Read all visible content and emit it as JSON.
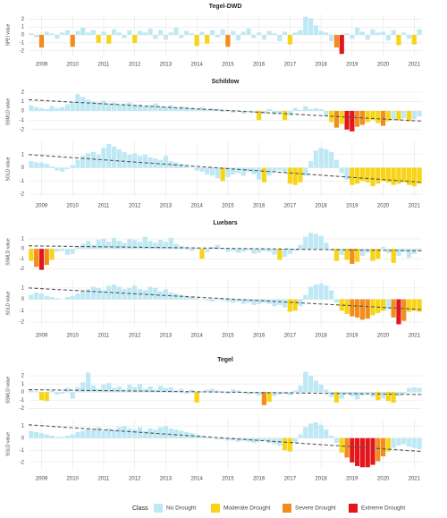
{
  "chart_data": [
    {
      "type": "bar",
      "title": "Tegel-DWD",
      "ylabel": "SPEI value",
      "grid": true,
      "categories": [
        null,
        null,
        "2009",
        null,
        null,
        null,
        null,
        null,
        "2010",
        null,
        null,
        null,
        null,
        null,
        "2011",
        null,
        null,
        null,
        null,
        null,
        "2012",
        null,
        null,
        null,
        null,
        null,
        "2013",
        null,
        null,
        null,
        null,
        null,
        "2014",
        null,
        null,
        null,
        null,
        null,
        "2015",
        null,
        null,
        null,
        null,
        null,
        "2016",
        null,
        null,
        null,
        null,
        null,
        "2017",
        null,
        null,
        null,
        null,
        null,
        "2018",
        null,
        null,
        null,
        null,
        null,
        "2019",
        null,
        null,
        null,
        null,
        null,
        "2020",
        null,
        null,
        null,
        null,
        null,
        "2021",
        null
      ],
      "values": [
        0.2,
        -0.3,
        -1.6,
        0.4,
        0.2,
        -0.5,
        0.3,
        0.6,
        -1.5,
        0.5,
        0.9,
        0.3,
        0.6,
        -1.0,
        0.4,
        -1.1,
        0.7,
        0.3,
        -0.4,
        0.6,
        -1.0,
        0.5,
        0.3,
        0.8,
        -0.5,
        0.6,
        -0.6,
        0.3,
        0.9,
        -0.4,
        0.5,
        0.2,
        -1.4,
        0.4,
        -1.1,
        0.6,
        -0.3,
        0.7,
        -1.5,
        0.5,
        -0.7,
        0.4,
        0.8,
        -0.4,
        0.3,
        -0.6,
        0.5,
        0.2,
        -0.8,
        0.4,
        -1.2,
        0.3,
        0.6,
        2.3,
        2.1,
        1.2,
        0.5,
        0.3,
        -0.8,
        -1.6,
        -2.4,
        0.2,
        -0.5,
        0.9,
        0.4,
        -0.6,
        0.7,
        0.3,
        0.4,
        -0.7,
        0.6,
        -1.3,
        0.3,
        -0.5,
        -1.2,
        0.7
      ],
      "ylim": [
        -2.6,
        2.6
      ],
      "yticks": [
        -2,
        -1,
        0,
        1,
        2
      ]
    },
    {
      "type": "bar",
      "title": "Schildow",
      "ylabel": "SSMLD value",
      "grid": true,
      "values": [
        0.6,
        0.4,
        0.3,
        0.2,
        0.5,
        0.3,
        0.4,
        0.7,
        1.0,
        1.8,
        1.5,
        1.2,
        1.0,
        0.9,
        1.1,
        0.8,
        0.9,
        0.7,
        0.8,
        0.9,
        0.6,
        0.7,
        0.5,
        0.6,
        0.8,
        0.5,
        0.4,
        0.6,
        0.3,
        0.5,
        0.4,
        0.3,
        0.2,
        0.4,
        0.1,
        0.3,
        0.2,
        -0.1,
        0.1,
        -0.2,
        0.1,
        -0.3,
        -0.1,
        -0.2,
        -1.0,
        -0.3,
        0.2,
        -0.4,
        -0.2,
        -1.0,
        -0.5,
        0.3,
        0.1,
        0.5,
        0.2,
        0.3,
        0.2,
        -0.5,
        -1.2,
        -1.8,
        -1.4,
        -2.0,
        -2.2,
        -1.7,
        -1.5,
        -1.2,
        -1.0,
        -1.3,
        -1.6,
        -1.1,
        -0.9,
        -1.0,
        -0.8,
        -1.1,
        -0.9,
        -0.6
      ],
      "ylim": [
        -2.5,
        2.3
      ],
      "yticks": [
        -2,
        -1,
        0,
        1,
        2
      ],
      "trend": [
        1.2,
        -1.1
      ]
    },
    {
      "type": "bar",
      "ylabel": "SGLD value",
      "grid": true,
      "categories": [
        null,
        null,
        "2009",
        null,
        null,
        null,
        null,
        null,
        "2010",
        null,
        null,
        null,
        null,
        null,
        "2011",
        null,
        null,
        null,
        null,
        null,
        "2012",
        null,
        null,
        null,
        null,
        null,
        "2013",
        null,
        null,
        null,
        null,
        null,
        "2014",
        null,
        null,
        null,
        null,
        null,
        "2015",
        null,
        null,
        null,
        null,
        null,
        "2016",
        null,
        null,
        null,
        null,
        null,
        "2017",
        null,
        null,
        null,
        null,
        null,
        "2018",
        null,
        null,
        null,
        null,
        null,
        "2019",
        null,
        null,
        null,
        null,
        null,
        "2020",
        null,
        null,
        null,
        null,
        null,
        "2021",
        null
      ],
      "values": [
        0.5,
        0.4,
        0.4,
        0.3,
        0.1,
        -0.2,
        -0.3,
        -0.1,
        0.2,
        0.6,
        0.9,
        1.1,
        1.2,
        1.0,
        1.5,
        1.8,
        1.6,
        1.4,
        1.2,
        1.0,
        1.1,
        0.9,
        1.0,
        0.8,
        0.7,
        0.6,
        0.9,
        0.5,
        0.4,
        0.3,
        0.2,
        0.0,
        -0.2,
        -0.3,
        -0.5,
        -0.6,
        -0.8,
        -1.0,
        -0.7,
        -0.5,
        -0.4,
        -0.6,
        -0.3,
        -0.5,
        -0.9,
        -1.1,
        -0.6,
        -0.3,
        -0.2,
        -0.4,
        -1.2,
        -1.3,
        -1.1,
        -0.6,
        0.5,
        1.3,
        1.5,
        1.4,
        1.2,
        0.6,
        -0.4,
        -0.9,
        -1.3,
        -1.2,
        -1.0,
        -1.1,
        -1.4,
        -1.2,
        -1.0,
        -1.1,
        -1.3,
        -1.2,
        -1.1,
        -1.3,
        -1.4,
        -1.2
      ],
      "ylim": [
        -2.2,
        2.0
      ],
      "yticks": [
        -2,
        -1,
        0,
        1
      ],
      "trend": [
        1.0,
        -1.1
      ]
    },
    {
      "type": "bar",
      "title": "Luebars",
      "ylabel": "SSMLD value",
      "grid": true,
      "values": [
        -1.2,
        -1.8,
        -2.1,
        -1.6,
        -1.1,
        -0.3,
        -0.2,
        -0.6,
        -0.5,
        0.2,
        0.5,
        0.8,
        0.4,
        0.9,
        1.0,
        0.7,
        1.1,
        0.8,
        0.6,
        1.0,
        0.9,
        0.7,
        1.2,
        0.8,
        0.6,
        0.9,
        0.7,
        1.1,
        0.5,
        0.3,
        0.2,
        -0.2,
        0.1,
        -1.0,
        -0.3,
        0.2,
        0.4,
        0.1,
        -0.3,
        -0.2,
        -0.4,
        -0.3,
        -0.1,
        -0.5,
        -0.4,
        -0.2,
        -0.3,
        -0.6,
        -1.1,
        -0.8,
        -0.5,
        -0.2,
        0.4,
        1.2,
        1.6,
        1.5,
        1.3,
        0.6,
        -0.2,
        -1.2,
        -0.6,
        -1.1,
        -1.5,
        -1.3,
        -0.7,
        -0.4,
        -1.2,
        -1.0,
        0.2,
        -0.4,
        -1.4,
        -0.7,
        -0.3,
        -0.9,
        -0.5,
        -0.2
      ],
      "ylim": [
        -2.4,
        1.8
      ],
      "yticks": [
        -2,
        -1,
        0,
        1
      ],
      "trend": [
        0.3,
        -0.2
      ]
    },
    {
      "type": "bar",
      "ylabel": "SGLD value",
      "grid": true,
      "categories": [
        null,
        null,
        "2009",
        null,
        null,
        null,
        null,
        null,
        "2010",
        null,
        null,
        null,
        null,
        null,
        "2011",
        null,
        null,
        null,
        null,
        null,
        "2012",
        null,
        null,
        null,
        null,
        null,
        "2013",
        null,
        null,
        null,
        null,
        null,
        "2014",
        null,
        null,
        null,
        null,
        null,
        "2015",
        null,
        null,
        null,
        null,
        null,
        "2016",
        null,
        null,
        null,
        null,
        null,
        "2017",
        null,
        null,
        null,
        null,
        null,
        "2018",
        null,
        null,
        null,
        null,
        null,
        "2019",
        null,
        null,
        null,
        null,
        null,
        "2020",
        null,
        null,
        null,
        null,
        null,
        "2021",
        null
      ],
      "values": [
        0.4,
        0.6,
        0.5,
        0.3,
        0.2,
        0.1,
        0.0,
        0.2,
        0.3,
        0.5,
        0.7,
        0.9,
        1.1,
        1.0,
        0.8,
        1.2,
        1.3,
        1.1,
        0.9,
        1.0,
        1.2,
        0.9,
        0.8,
        1.1,
        1.0,
        0.7,
        0.9,
        0.6,
        0.5,
        0.4,
        0.3,
        0.2,
        0.1,
        0.0,
        -0.1,
        -0.2,
        0.1,
        -0.1,
        -0.2,
        -0.3,
        -0.2,
        -0.4,
        -0.3,
        -0.5,
        -0.4,
        -0.3,
        -0.4,
        -0.6,
        -0.5,
        -0.7,
        -1.1,
        -1.0,
        -0.6,
        0.4,
        1.1,
        1.3,
        1.4,
        1.2,
        0.8,
        -0.3,
        -1.0,
        -1.3,
        -1.5,
        -1.6,
        -1.8,
        -1.7,
        -1.4,
        -1.2,
        -1.0,
        -0.9,
        -1.6,
        -2.2,
        -1.9,
        -1.1,
        -1.0,
        -1.1
      ],
      "ylim": [
        -2.4,
        1.7
      ],
      "yticks": [
        -2,
        -1,
        0,
        1
      ],
      "trend": [
        1.0,
        -0.9
      ]
    },
    {
      "type": "bar",
      "title": "Tegel",
      "ylabel": "SSMLD value",
      "grid": true,
      "values": [
        0.3,
        0.1,
        -1.0,
        -1.1,
        0.2,
        -0.3,
        -0.2,
        0.5,
        -0.8,
        0.6,
        1.2,
        2.4,
        0.8,
        0.4,
        0.9,
        1.1,
        0.5,
        0.7,
        0.3,
        0.9,
        0.6,
        1.0,
        0.4,
        0.7,
        0.3,
        0.8,
        0.5,
        0.6,
        0.2,
        0.4,
        -0.2,
        0.3,
        -1.3,
        0.1,
        0.3,
        0.4,
        0.2,
        0.1,
        -0.2,
        0.3,
        0.2,
        -0.1,
        -0.3,
        -0.2,
        -0.4,
        -1.6,
        -1.2,
        -0.5,
        -0.3,
        -0.2,
        -0.4,
        0.2,
        0.8,
        2.5,
        2.0,
        1.4,
        0.9,
        0.3,
        -0.6,
        -1.3,
        -0.8,
        -0.3,
        -0.5,
        -0.9,
        -0.4,
        -0.2,
        -0.6,
        -1.0,
        -0.8,
        -1.1,
        -1.3,
        -0.5,
        -0.2,
        0.5,
        0.6,
        0.5
      ],
      "ylim": [
        -2.5,
        3.0
      ],
      "yticks": [
        -2,
        -1,
        0,
        1,
        2
      ],
      "trend": [
        0.3,
        -0.3
      ]
    },
    {
      "type": "bar",
      "ylabel": "SGLD value",
      "grid": true,
      "categories": [
        null,
        null,
        "2009",
        null,
        null,
        null,
        null,
        null,
        "2010",
        null,
        null,
        null,
        null,
        null,
        "2011",
        null,
        null,
        null,
        null,
        null,
        "2012",
        null,
        null,
        null,
        null,
        null,
        "2013",
        null,
        null,
        null,
        null,
        null,
        "2014",
        null,
        null,
        null,
        null,
        null,
        "2015",
        null,
        null,
        null,
        null,
        null,
        "2016",
        null,
        null,
        null,
        null,
        null,
        "2017",
        null,
        null,
        null,
        null,
        null,
        "2018",
        null,
        null,
        null,
        null,
        null,
        "2019",
        null,
        null,
        null,
        null,
        null,
        "2020",
        null,
        null,
        null,
        null,
        null,
        "2021",
        null
      ],
      "values": [
        0.6,
        0.5,
        0.4,
        0.3,
        0.2,
        0.1,
        0.1,
        0.2,
        0.3,
        0.5,
        0.6,
        0.8,
        0.7,
        0.9,
        0.6,
        0.8,
        0.7,
        0.9,
        1.0,
        0.8,
        0.7,
        0.9,
        0.6,
        0.8,
        0.7,
        0.9,
        1.0,
        0.8,
        0.7,
        0.6,
        0.5,
        0.4,
        0.3,
        0.2,
        0.1,
        0.0,
        -0.1,
        -0.1,
        -0.2,
        -0.2,
        -0.3,
        -0.2,
        -0.3,
        -0.4,
        -0.3,
        -0.2,
        -0.4,
        -0.5,
        -0.6,
        -1.0,
        -1.1,
        -0.4,
        0.3,
        0.9,
        1.2,
        1.3,
        1.1,
        0.7,
        0.2,
        -0.4,
        -1.2,
        -1.6,
        -2.0,
        -2.3,
        -2.4,
        -2.4,
        -2.2,
        -1.9,
        -1.5,
        -1.1,
        -0.8,
        -0.6,
        -0.5,
        -0.7,
        -0.8,
        -0.9
      ],
      "ylim": [
        -2.6,
        1.6
      ],
      "yticks": [
        -2,
        -1,
        0,
        1
      ],
      "trend": [
        1.1,
        -1.1
      ]
    }
  ],
  "legend": {
    "title": "Class",
    "items": [
      {
        "name": "No Drought",
        "color": "#bfe8f5"
      },
      {
        "name": "Moderate Drought",
        "color": "#f7d416"
      },
      {
        "name": "Severe Drought",
        "color": "#f28c1c"
      },
      {
        "name": "Extreme Drought",
        "color": "#e3161c"
      }
    ]
  }
}
